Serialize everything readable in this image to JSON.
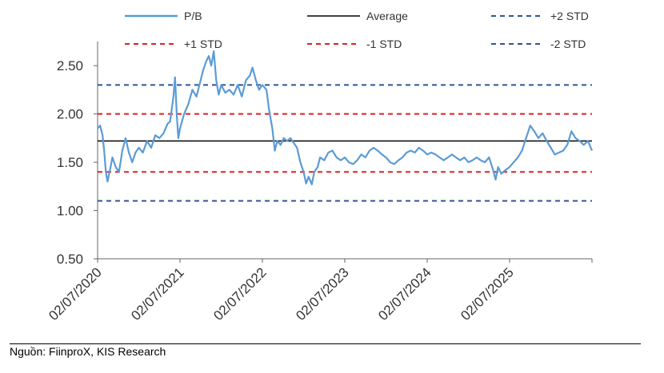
{
  "chart_data": {
    "type": "line",
    "title": "",
    "xlabel": "",
    "ylabel": "",
    "ylim": [
      0.5,
      2.75
    ],
    "y_ticks": [
      "0.50",
      "1.00",
      "1.50",
      "2.00",
      "2.50"
    ],
    "x_ticks": [
      "02/07/2020",
      "02/07/2021",
      "02/07/2022",
      "02/07/2023",
      "02/07/2024",
      "02/07/2025"
    ],
    "x_range_years": [
      2020.5,
      2026.5
    ],
    "legend_position": "top",
    "series": [
      {
        "name": "P/B",
        "style": "solid",
        "color": "#5b9bd5",
        "points": [
          [
            2020.5,
            1.85
          ],
          [
            2020.53,
            1.88
          ],
          [
            2020.56,
            1.78
          ],
          [
            2020.58,
            1.62
          ],
          [
            2020.6,
            1.4
          ],
          [
            2020.62,
            1.3
          ],
          [
            2020.65,
            1.42
          ],
          [
            2020.68,
            1.55
          ],
          [
            2020.72,
            1.45
          ],
          [
            2020.76,
            1.4
          ],
          [
            2020.8,
            1.62
          ],
          [
            2020.84,
            1.75
          ],
          [
            2020.88,
            1.6
          ],
          [
            2020.92,
            1.5
          ],
          [
            2020.96,
            1.6
          ],
          [
            2021.0,
            1.65
          ],
          [
            2021.05,
            1.6
          ],
          [
            2021.1,
            1.72
          ],
          [
            2021.15,
            1.65
          ],
          [
            2021.2,
            1.78
          ],
          [
            2021.25,
            1.75
          ],
          [
            2021.3,
            1.8
          ],
          [
            2021.35,
            1.9
          ],
          [
            2021.38,
            1.92
          ],
          [
            2021.42,
            2.18
          ],
          [
            2021.44,
            2.38
          ],
          [
            2021.46,
            2.0
          ],
          [
            2021.48,
            1.75
          ],
          [
            2021.5,
            1.85
          ],
          [
            2021.55,
            2.0
          ],
          [
            2021.6,
            2.1
          ],
          [
            2021.65,
            2.25
          ],
          [
            2021.7,
            2.18
          ],
          [
            2021.75,
            2.35
          ],
          [
            2021.78,
            2.45
          ],
          [
            2021.82,
            2.55
          ],
          [
            2021.85,
            2.6
          ],
          [
            2021.88,
            2.5
          ],
          [
            2021.91,
            2.65
          ],
          [
            2021.94,
            2.35
          ],
          [
            2021.97,
            2.2
          ],
          [
            2022.0,
            2.3
          ],
          [
            2022.05,
            2.22
          ],
          [
            2022.1,
            2.25
          ],
          [
            2022.15,
            2.2
          ],
          [
            2022.2,
            2.3
          ],
          [
            2022.25,
            2.18
          ],
          [
            2022.3,
            2.35
          ],
          [
            2022.35,
            2.4
          ],
          [
            2022.38,
            2.48
          ],
          [
            2022.42,
            2.35
          ],
          [
            2022.46,
            2.25
          ],
          [
            2022.5,
            2.3
          ],
          [
            2022.55,
            2.25
          ],
          [
            2022.58,
            2.05
          ],
          [
            2022.62,
            1.85
          ],
          [
            2022.65,
            1.62
          ],
          [
            2022.68,
            1.72
          ],
          [
            2022.72,
            1.68
          ],
          [
            2022.76,
            1.75
          ],
          [
            2022.8,
            1.72
          ],
          [
            2022.84,
            1.75
          ],
          [
            2022.88,
            1.7
          ],
          [
            2022.92,
            1.65
          ],
          [
            2022.96,
            1.5
          ],
          [
            2023.0,
            1.4
          ],
          [
            2023.03,
            1.28
          ],
          [
            2023.06,
            1.35
          ],
          [
            2023.1,
            1.27
          ],
          [
            2023.13,
            1.4
          ],
          [
            2023.17,
            1.45
          ],
          [
            2023.2,
            1.55
          ],
          [
            2023.25,
            1.52
          ],
          [
            2023.3,
            1.6
          ],
          [
            2023.35,
            1.62
          ],
          [
            2023.4,
            1.55
          ],
          [
            2023.45,
            1.52
          ],
          [
            2023.5,
            1.55
          ],
          [
            2023.55,
            1.5
          ],
          [
            2023.6,
            1.48
          ],
          [
            2023.65,
            1.52
          ],
          [
            2023.7,
            1.58
          ],
          [
            2023.75,
            1.55
          ],
          [
            2023.8,
            1.62
          ],
          [
            2023.85,
            1.65
          ],
          [
            2023.9,
            1.62
          ],
          [
            2023.95,
            1.58
          ],
          [
            2024.0,
            1.55
          ],
          [
            2024.05,
            1.5
          ],
          [
            2024.1,
            1.48
          ],
          [
            2024.15,
            1.52
          ],
          [
            2024.2,
            1.55
          ],
          [
            2024.25,
            1.6
          ],
          [
            2024.3,
            1.62
          ],
          [
            2024.35,
            1.6
          ],
          [
            2024.4,
            1.65
          ],
          [
            2024.45,
            1.62
          ],
          [
            2024.5,
            1.58
          ],
          [
            2024.55,
            1.6
          ],
          [
            2024.6,
            1.58
          ],
          [
            2024.65,
            1.55
          ],
          [
            2024.7,
            1.52
          ],
          [
            2024.75,
            1.55
          ],
          [
            2024.8,
            1.58
          ],
          [
            2024.85,
            1.55
          ],
          [
            2024.9,
            1.52
          ],
          [
            2024.95,
            1.55
          ],
          [
            2025.0,
            1.5
          ],
          [
            2025.05,
            1.52
          ],
          [
            2025.1,
            1.55
          ],
          [
            2025.15,
            1.52
          ],
          [
            2025.2,
            1.5
          ],
          [
            2025.25,
            1.55
          ],
          [
            2025.3,
            1.42
          ],
          [
            2025.33,
            1.32
          ],
          [
            2025.36,
            1.45
          ],
          [
            2025.4,
            1.38
          ],
          [
            2025.45,
            1.42
          ],
          [
            2025.5,
            1.45
          ],
          [
            2025.55,
            1.5
          ],
          [
            2025.6,
            1.55
          ],
          [
            2025.65,
            1.62
          ],
          [
            2025.7,
            1.75
          ],
          [
            2025.75,
            1.88
          ],
          [
            2025.8,
            1.82
          ],
          [
            2025.85,
            1.75
          ],
          [
            2025.9,
            1.8
          ],
          [
            2025.95,
            1.72
          ],
          [
            2026.0,
            1.65
          ],
          [
            2026.05,
            1.58
          ],
          [
            2026.1,
            1.6
          ],
          [
            2026.15,
            1.62
          ],
          [
            2026.2,
            1.68
          ],
          [
            2026.25,
            1.82
          ],
          [
            2026.3,
            1.75
          ],
          [
            2026.35,
            1.72
          ],
          [
            2026.4,
            1.68
          ],
          [
            2026.45,
            1.72
          ],
          [
            2026.5,
            1.62
          ]
        ]
      },
      {
        "name": "Average",
        "style": "solid",
        "color": "#000000",
        "value": 1.72
      },
      {
        "name": "+2 STD",
        "style": "dashed",
        "color": "#2e5597",
        "value": 2.3
      },
      {
        "name": "+1 STD",
        "style": "dashed",
        "color": "#e02020",
        "value": 2.0
      },
      {
        "name": "-1 STD",
        "style": "dashed",
        "color": "#e02020",
        "value": 1.4
      },
      {
        "name": "-2 STD",
        "style": "dashed",
        "color": "#2e5597",
        "value": 1.1
      }
    ],
    "source": "Nguồn: FiinproX, KIS Research"
  }
}
